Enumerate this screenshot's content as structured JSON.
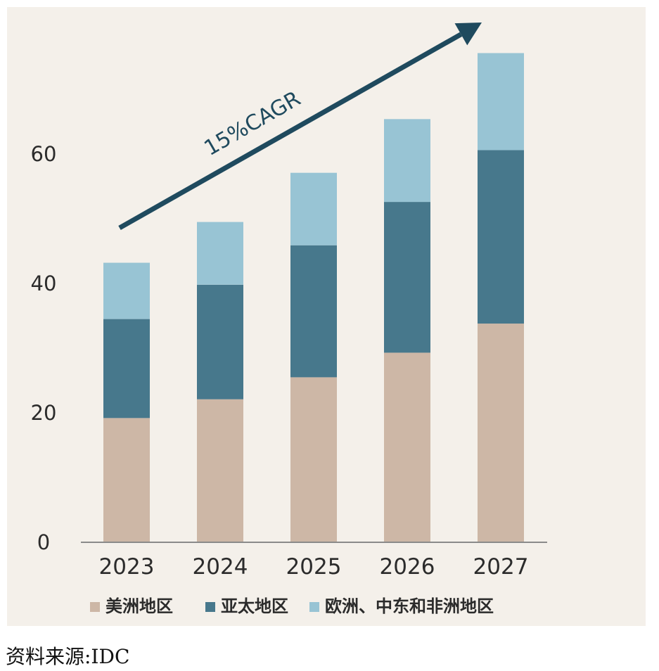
{
  "chart_data": {
    "type": "bar",
    "stacked": true,
    "categories": [
      "2023",
      "2024",
      "2025",
      "2026",
      "2027"
    ],
    "series": [
      {
        "name": "美洲地区",
        "color": "#cdb7a6",
        "values": [
          19.2,
          22.1,
          25.5,
          29.3,
          33.8
        ]
      },
      {
        "name": "亚太地区",
        "color": "#47788c",
        "values": [
          15.3,
          17.7,
          20.4,
          23.3,
          26.8
        ]
      },
      {
        "name": "欧洲、中东和非洲地区",
        "color": "#98c4d4",
        "values": [
          8.7,
          9.7,
          11.2,
          12.8,
          15.0
        ]
      }
    ],
    "yticks": [
      0,
      20,
      40,
      60
    ],
    "ylim": [
      0,
      80
    ],
    "grid": false,
    "legend_position": "bottom",
    "annotation": {
      "text": "15%CAGR",
      "color": "#1f4a5e"
    }
  },
  "source": "资料来源:IDC"
}
